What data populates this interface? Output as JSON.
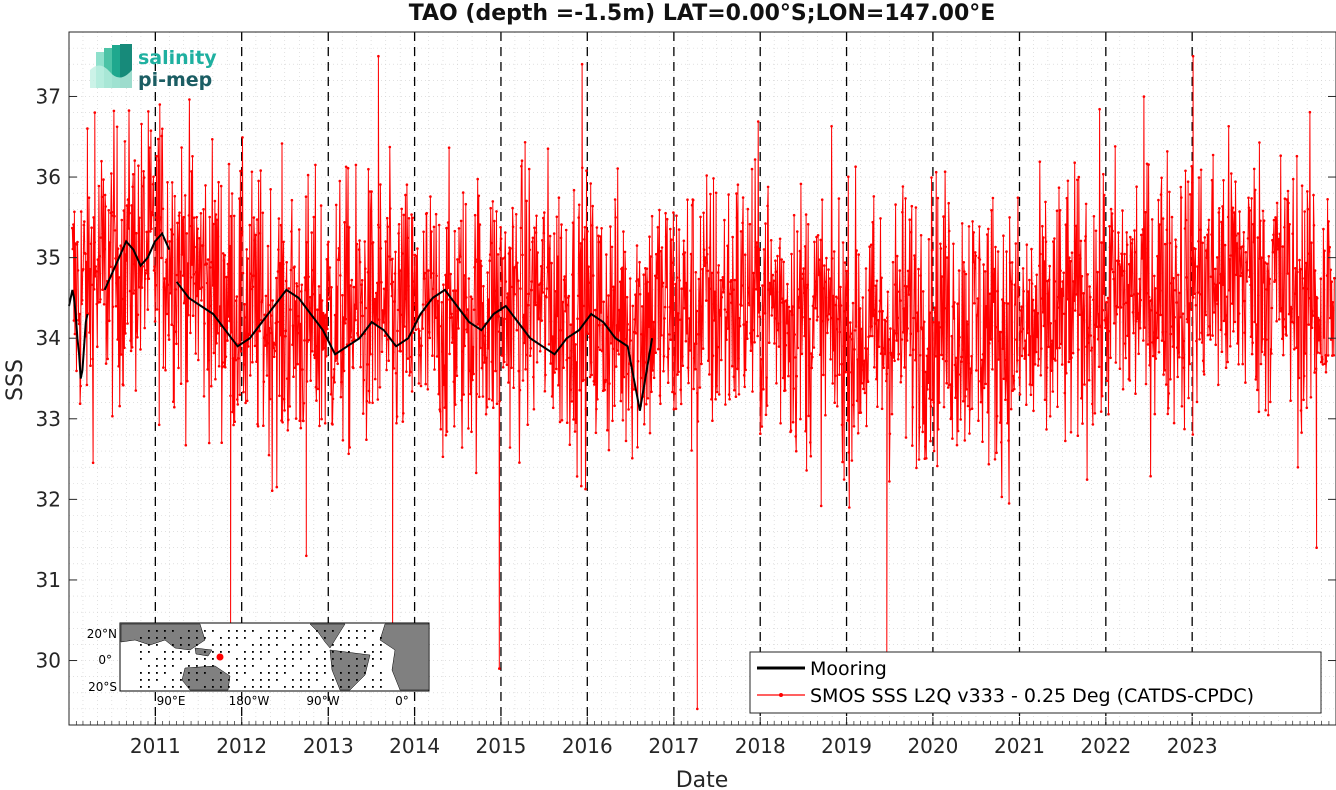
{
  "chart_data": {
    "type": "line",
    "title": "TAO (depth =-1.5m) LAT=0.00°S;LON=147.00°E",
    "xlabel": "Date",
    "ylabel": "SSS",
    "xlim": [
      "2010-01-01",
      "2024-08-31"
    ],
    "ylim": [
      29.2,
      37.8
    ],
    "x_ticks": [
      "2011",
      "2012",
      "2013",
      "2014",
      "2015",
      "2016",
      "2017",
      "2018",
      "2019",
      "2020",
      "2021",
      "2022",
      "2023"
    ],
    "y_ticks": [
      "30",
      "31",
      "32",
      "33",
      "34",
      "35",
      "36",
      "37"
    ],
    "grid": "dotted minor grid on",
    "legend_position": "bottom-right",
    "series": [
      {
        "name": "Mooring",
        "color": "#000000",
        "note_values": "daily mooring SSS; visible segments",
        "segments": [
          {
            "start": "2010-01-01",
            "end": "2010-03-20",
            "values": [
              34.4,
              34.5,
              34.6,
              34.5,
              34.3,
              34.0,
              33.8,
              33.5,
              33.6,
              33.9,
              34.2,
              34.3
            ]
          },
          {
            "start": "2010-06-01",
            "end": "2011-03-01",
            "values": [
              34.6,
              34.8,
              35.0,
              35.2,
              35.1,
              34.9,
              35.0,
              35.2,
              35.3,
              35.1
            ]
          },
          {
            "start": "2011-04-01",
            "end": "2016-10-01",
            "values": [
              34.7,
              34.5,
              34.4,
              34.3,
              34.1,
              33.9,
              34.0,
              34.2,
              34.4,
              34.6,
              34.5,
              34.3,
              34.1,
              33.8,
              33.9,
              34.0,
              34.2,
              34.1,
              33.9,
              34.0,
              34.3,
              34.5,
              34.6,
              34.4,
              34.2,
              34.1,
              34.3,
              34.4,
              34.2,
              34.0,
              33.9,
              33.8,
              34.0,
              34.1,
              34.3,
              34.2,
              34.0,
              33.9,
              33.1,
              34.0
            ]
          }
        ]
      },
      {
        "name": "SMOS SSS L2Q v333 - 0.25 Deg (CATDS-CPDC)",
        "color": "#ff0000",
        "style": "line with dot markers",
        "x_range": [
          "2010-01-15",
          "2024-08-25"
        ],
        "mean": 34.4,
        "typical_range": [
          32.5,
          36.5
        ],
        "monthly_mean": [
          34.5,
          34.8,
          35.0,
          35.1,
          34.8,
          34.5,
          34.3,
          34.2,
          34.2,
          34.3,
          34.3,
          34.2,
          34.2,
          34.3,
          34.4,
          34.5,
          34.4,
          34.2,
          34.2,
          34.3,
          34.3,
          34.4,
          34.5,
          34.4,
          34.2,
          34.1,
          34.0,
          34.2,
          34.3,
          34.2,
          34.1,
          34.0,
          34.2,
          34.4,
          34.5,
          34.6,
          34.6,
          34.7,
          34.8,
          34.7,
          34.5,
          34.4
        ],
        "notable_extremes": [
          {
            "x": "2010-04-20",
            "y": 36.8
          },
          {
            "x": "2011-01-20",
            "y": 36.9
          },
          {
            "x": "2011-11-15",
            "y": 30.4
          },
          {
            "x": "2012-09-30",
            "y": 31.3
          },
          {
            "x": "2013-08-01",
            "y": 37.5
          },
          {
            "x": "2013-09-30",
            "y": 30.0
          },
          {
            "x": "2014-12-25",
            "y": 29.9
          },
          {
            "x": "2015-12-10",
            "y": 37.4
          },
          {
            "x": "2017-04-10",
            "y": 29.4
          },
          {
            "x": "2019-06-20",
            "y": 30.0
          },
          {
            "x": "2023-01-05",
            "y": 37.5
          },
          {
            "x": "2024-06-10",
            "y": 31.4
          }
        ]
      }
    ],
    "vertical_dashed_lines_at": [
      "2011-01-01",
      "2012-01-01",
      "2013-01-01",
      "2014-01-01",
      "2015-01-01",
      "2016-01-01",
      "2017-01-01",
      "2018-01-01",
      "2019-01-01",
      "2020-01-01",
      "2021-01-01",
      "2022-01-01",
      "2023-01-01"
    ]
  },
  "logo": {
    "line1": "salinity",
    "line2": "pi-mep"
  },
  "inset_map": {
    "lat_labels": [
      "20°N",
      "0°",
      "20°S"
    ],
    "lon_labels": [
      "90°E",
      "180°W",
      "90°W",
      "0°"
    ],
    "station_marker_color": "#ff0000"
  }
}
